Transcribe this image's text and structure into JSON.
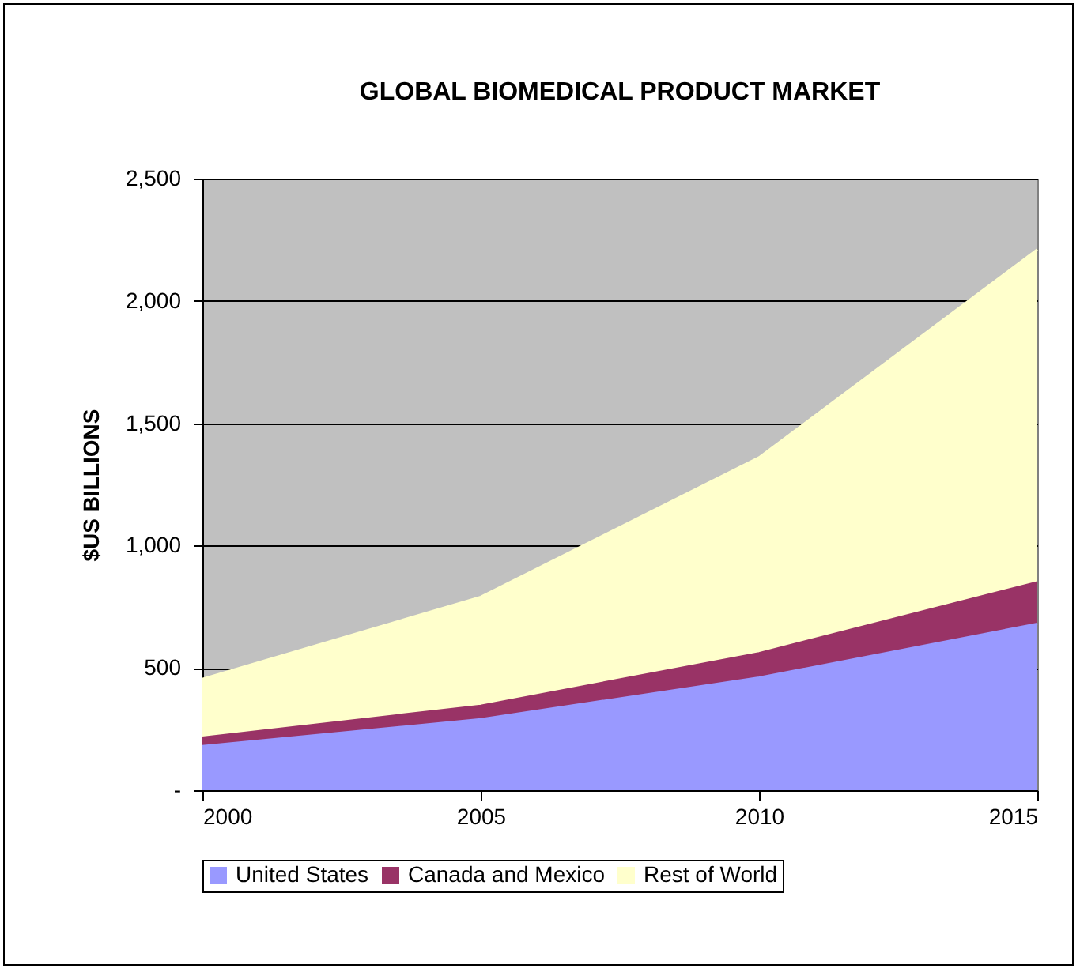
{
  "chart_data": {
    "type": "area",
    "title": "GLOBAL BIOMEDICAL PRODUCT MARKET",
    "ylabel": "$US BILLIONS",
    "stacked": true,
    "x": [
      2000,
      2005,
      2010,
      2015
    ],
    "series": [
      {
        "name": "United States",
        "color": "#9999ff",
        "values": [
          180,
          290,
          460,
          680
        ]
      },
      {
        "name": "Canada and Mexico",
        "color": "#993366",
        "values": [
          35,
          55,
          100,
          170
        ]
      },
      {
        "name": "Rest of World",
        "color": "#ffffcc",
        "values": [
          240,
          445,
          800,
          1360
        ]
      }
    ],
    "xlim": [
      2000,
      2015
    ],
    "xticks": [
      2000,
      2005,
      2010,
      2015
    ],
    "ylim": [
      0,
      2500
    ],
    "yticks": [
      {
        "value": 0,
        "label": "-"
      },
      {
        "value": 500,
        "label": "500"
      },
      {
        "value": 1000,
        "label": "1,000"
      },
      {
        "value": 1500,
        "label": "1,500"
      },
      {
        "value": 2000,
        "label": "2,000"
      },
      {
        "value": 2500,
        "label": "2,500"
      }
    ],
    "grid": "y",
    "legend": "bottom"
  }
}
